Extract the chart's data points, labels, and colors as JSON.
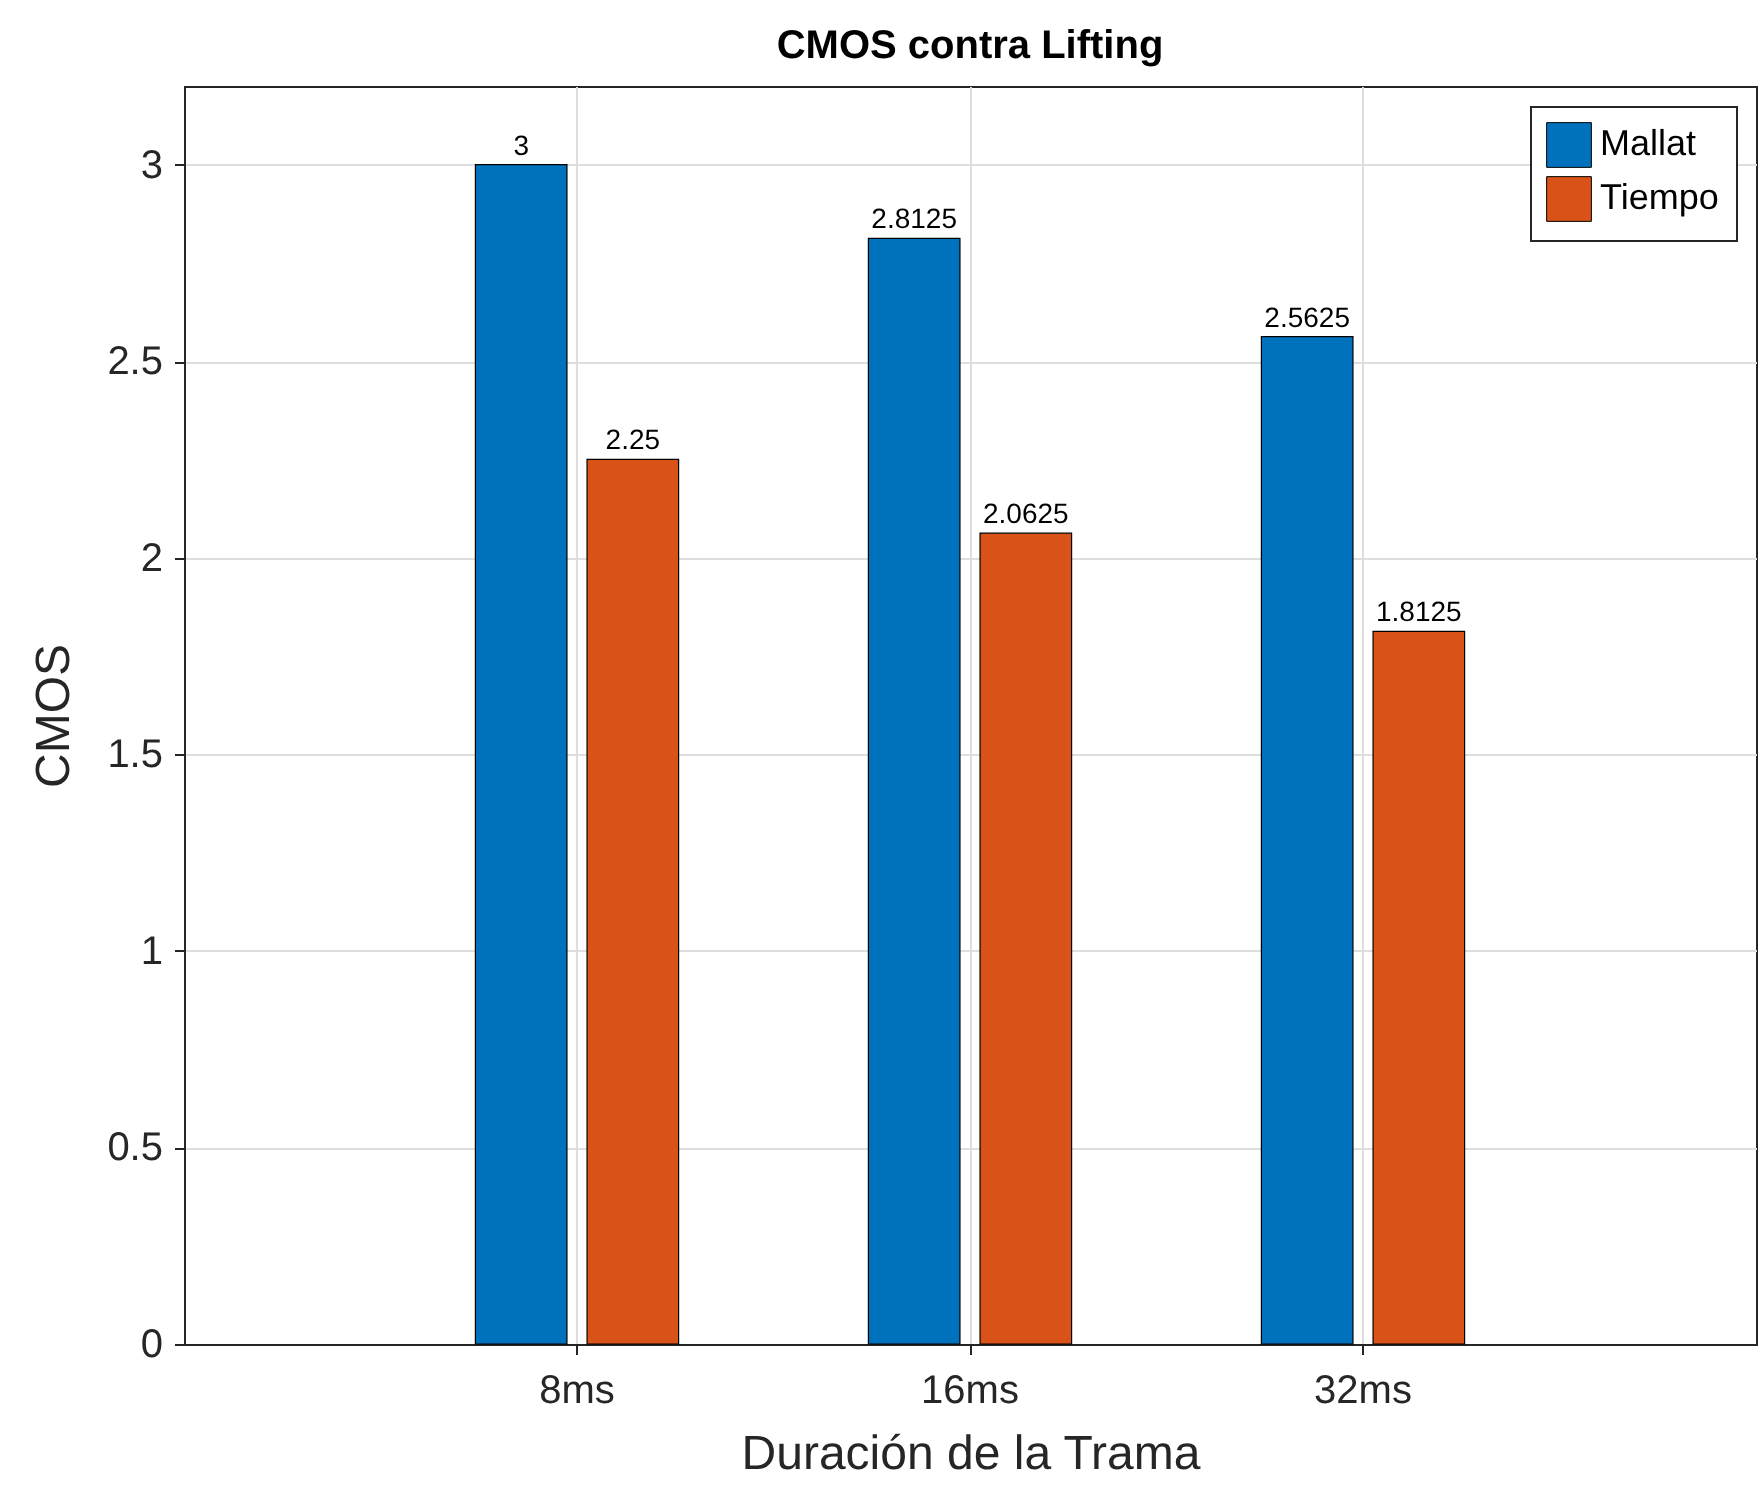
{
  "chart_data": {
    "type": "bar",
    "title": "CMOS contra Lifting",
    "xlabel": "Duración de la Trama",
    "ylabel": "CMOS",
    "categories": [
      "8ms",
      "16ms",
      "32ms"
    ],
    "series": [
      {
        "name": "Mallat",
        "color": "#0072bd",
        "values": [
          3,
          2.8125,
          2.5625
        ]
      },
      {
        "name": "Tiempo",
        "color": "#d95319",
        "values": [
          2.25,
          2.0625,
          1.8125
        ]
      }
    ],
    "ylim": [
      0,
      3.2
    ],
    "yticks": [
      0,
      0.5,
      1,
      1.5,
      2,
      2.5,
      3
    ],
    "grid": true,
    "legend": "top right",
    "data_labels": true
  }
}
